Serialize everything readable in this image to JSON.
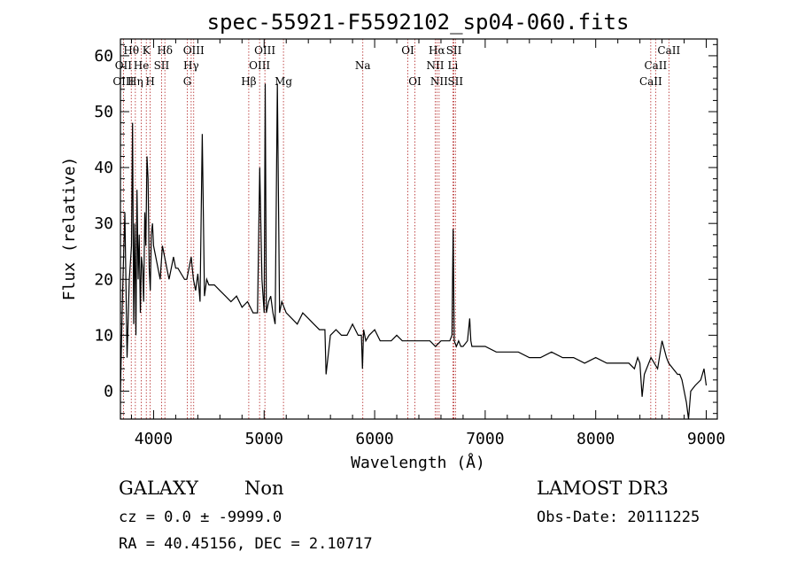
{
  "chart_data": {
    "type": "line",
    "title": "spec-55921-F5592102_sp04-060.fits",
    "xlabel": "Wavelength (Å)",
    "ylabel": "Flux (relative)",
    "xlim": [
      3700,
      9100
    ],
    "ylim": [
      -5,
      63
    ],
    "xticks": [
      4000,
      5000,
      6000,
      7000,
      8000,
      9000
    ],
    "yticks": [
      0,
      10,
      20,
      30,
      40,
      50,
      60
    ],
    "grid": false,
    "series": [
      {
        "values_note_free": true,
        "x": [
          3700,
          3720,
          3740,
          3760,
          3780,
          3800,
          3810,
          3820,
          3830,
          3840,
          3850,
          3860,
          3870,
          3880,
          3890,
          3900,
          3910,
          3920,
          3930,
          3940,
          3950,
          3960,
          3970,
          3980,
          3990,
          4000,
          4020,
          4040,
          4060,
          4080,
          4100,
          4120,
          4140,
          4160,
          4180,
          4200,
          4220,
          4250,
          4280,
          4300,
          4320,
          4340,
          4360,
          4380,
          4400,
          4420,
          4440,
          4460,
          4480,
          4500,
          4550,
          4600,
          4650,
          4700,
          4750,
          4800,
          4850,
          4900,
          4940,
          4960,
          4980,
          5000,
          5010,
          5020,
          5040,
          5060,
          5080,
          5100,
          5120,
          5140,
          5160,
          5200,
          5250,
          5300,
          5350,
          5400,
          5450,
          5500,
          5550,
          5560,
          5600,
          5650,
          5700,
          5750,
          5800,
          5850,
          5880,
          5890,
          5900,
          5920,
          5950,
          6000,
          6050,
          6100,
          6150,
          6200,
          6250,
          6300,
          6350,
          6400,
          6450,
          6500,
          6550,
          6600,
          6650,
          6680,
          6700,
          6710,
          6720,
          6740,
          6760,
          6780,
          6800,
          6840,
          6860,
          6870,
          6880,
          6900,
          6950,
          7000,
          7100,
          7200,
          7300,
          7400,
          7500,
          7600,
          7700,
          7800,
          7900,
          8000,
          8100,
          8200,
          8300,
          8350,
          8380,
          8400,
          8420,
          8440,
          8500,
          8560,
          8600,
          8640,
          8660,
          8700,
          8740,
          8760,
          8780,
          8800,
          8820,
          8840,
          8860,
          8900,
          8950,
          8980,
          9000
        ],
        "y": [
          0,
          18,
          32,
          6,
          20,
          26,
          48,
          12,
          30,
          10,
          36,
          20,
          28,
          14,
          24,
          22,
          16,
          32,
          26,
          42,
          38,
          22,
          18,
          28,
          30,
          26,
          24,
          22,
          20,
          26,
          24,
          22,
          20,
          22,
          24,
          22,
          22,
          21,
          20,
          20,
          22,
          24,
          20,
          18,
          21,
          16,
          46,
          17,
          20,
          19,
          19,
          18,
          17,
          16,
          17,
          15,
          16,
          14,
          14,
          40,
          20,
          14,
          55,
          14,
          16,
          17,
          14,
          12,
          55,
          14,
          16,
          14,
          13,
          12,
          14,
          13,
          12,
          11,
          11,
          3,
          10,
          11,
          10,
          10,
          12,
          10,
          10,
          4,
          11,
          9,
          10,
          11,
          9,
          9,
          9,
          10,
          9,
          9,
          9,
          9,
          9,
          9,
          8,
          9,
          9,
          9,
          10,
          29,
          9,
          8,
          9,
          8,
          8,
          9,
          13,
          9,
          8,
          8,
          8,
          8,
          7,
          7,
          7,
          6,
          6,
          7,
          6,
          6,
          5,
          6,
          5,
          5,
          5,
          4,
          6,
          5,
          -1,
          3,
          6,
          4,
          9,
          6,
          5,
          4,
          3,
          3,
          2,
          0,
          -2,
          -5,
          0,
          1,
          2,
          4,
          1
        ]
      }
    ],
    "line_markers": [
      {
        "label": "Hθ",
        "x": 3798,
        "row": 0
      },
      {
        "label": "K",
        "x": 3934,
        "row": 0
      },
      {
        "label": "Hδ",
        "x": 4102,
        "row": 0
      },
      {
        "label": "OIII",
        "x": 4363,
        "row": 0
      },
      {
        "label": "OIII",
        "x": 5007,
        "row": 0
      },
      {
        "label": "OI",
        "x": 6300,
        "row": 0
      },
      {
        "label": "Hα",
        "x": 6563,
        "row": 0
      },
      {
        "label": "SII",
        "x": 6717,
        "row": 0
      },
      {
        "label": "CaII",
        "x": 8662,
        "row": 0
      },
      {
        "label": "OII",
        "x": 3727,
        "row": 1
      },
      {
        "label": "He",
        "x": 3889,
        "row": 1
      },
      {
        "label": "SII",
        "x": 4072,
        "row": 1
      },
      {
        "label": "Hγ",
        "x": 4340,
        "row": 1
      },
      {
        "label": "OIII",
        "x": 4959,
        "row": 1
      },
      {
        "label": "Na",
        "x": 5893,
        "row": 1
      },
      {
        "label": "NII",
        "x": 6548,
        "row": 1
      },
      {
        "label": "Li",
        "x": 6708,
        "row": 1
      },
      {
        "label": "CaII",
        "x": 8542,
        "row": 1
      },
      {
        "label": "OIII",
        "x": 3727,
        "row": 2
      },
      {
        "label": "Hη",
        "x": 3835,
        "row": 2
      },
      {
        "label": "H",
        "x": 3969,
        "row": 2
      },
      {
        "label": "G",
        "x": 4305,
        "row": 2
      },
      {
        "label": "Hβ",
        "x": 4861,
        "row": 2
      },
      {
        "label": "Mg",
        "x": 5175,
        "row": 2
      },
      {
        "label": "OI",
        "x": 6364,
        "row": 2
      },
      {
        "label": "NII",
        "x": 6583,
        "row": 2
      },
      {
        "label": "SII",
        "x": 6731,
        "row": 2
      },
      {
        "label": "CaII",
        "x": 8498,
        "row": 2
      }
    ],
    "marker_lines_x": [
      3727,
      3798,
      3835,
      3889,
      3934,
      3969,
      4072,
      4102,
      4305,
      4340,
      4363,
      4861,
      4959,
      5007,
      5175,
      5893,
      6300,
      6364,
      6548,
      6563,
      6583,
      6708,
      6717,
      6731,
      8498,
      8542,
      8662
    ]
  },
  "info": {
    "class": "GALAXY",
    "subclass": "Non",
    "survey": "LAMOST DR3",
    "cz": "cz = 0.0 ± -9999.0",
    "obs_date": "Obs-Date: 20111225",
    "radec": "RA =  40.45156, DEC =   2.10717"
  }
}
